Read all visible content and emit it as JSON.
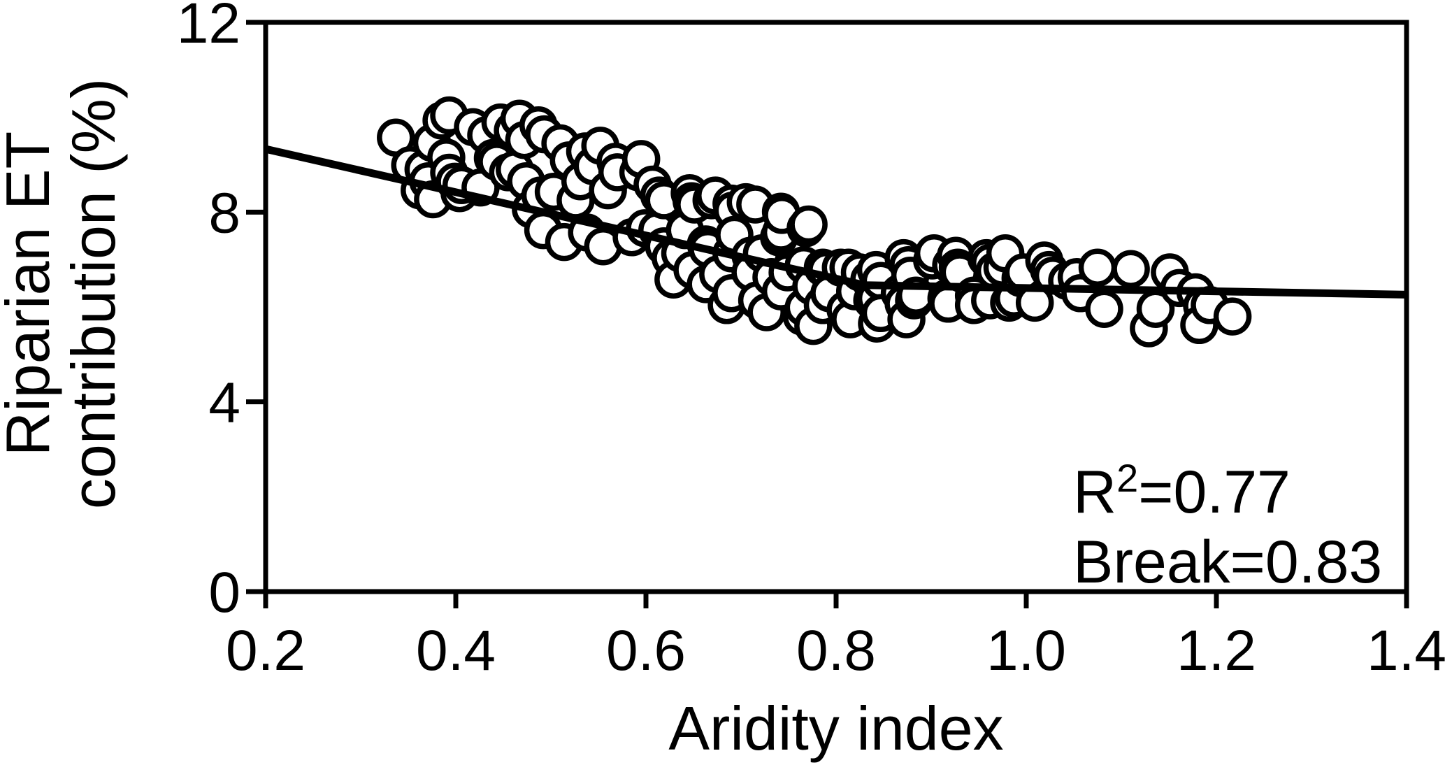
{
  "figure": {
    "background_color": "#ffffff",
    "foreground_color": "#000000",
    "y_axis_label_line1": "Riparian ET",
    "y_axis_label_line2": "contribution (%)",
    "x_axis_label": "Aridity index",
    "annotation": {
      "r2_base": "R",
      "r2_sup": "2",
      "r2_value": "=0.77",
      "break_text": "Break=0.83"
    }
  },
  "chart_data": {
    "type": "scatter",
    "title": "",
    "xlabel": "Aridity index",
    "ylabel": "Riparian ET contribution (%)",
    "xlim": [
      0.2,
      1.4
    ],
    "ylim": [
      0,
      12
    ],
    "x_ticks": [
      0.2,
      0.4,
      0.6,
      0.8,
      1.0,
      1.2,
      1.4
    ],
    "x_tick_labels": [
      "0.2",
      "0.4",
      "0.6",
      "0.8",
      "1.0",
      "1.2",
      "1.4"
    ],
    "y_ticks": [
      0,
      4,
      8,
      12
    ],
    "y_tick_labels": [
      "0",
      "4",
      "8",
      "12"
    ],
    "grid": false,
    "legend": null,
    "frame": "full-box",
    "annotations": [
      "R^2=0.77",
      "Break=0.83"
    ],
    "marker": {
      "shape": "open-circle",
      "radius_px": 23.5,
      "stroke": "#000000",
      "stroke_width": 7.5,
      "fill": "#ffffff"
    },
    "trend_line": {
      "color": "#000000",
      "width": 11,
      "break_x": 0.83,
      "r_squared": 0.77,
      "points": [
        [
          0.2,
          9.33
        ],
        [
          0.83,
          6.46
        ],
        [
          1.4,
          6.26
        ]
      ]
    },
    "points": [
      [
        0.337,
        9.57
      ],
      [
        0.352,
        8.99
      ],
      [
        0.362,
        8.46
      ],
      [
        0.366,
        8.9
      ],
      [
        0.371,
        8.65
      ],
      [
        0.375,
        9.46
      ],
      [
        0.376,
        8.27
      ],
      [
        0.385,
        9.93
      ],
      [
        0.39,
        9.15
      ],
      [
        0.393,
        10.04
      ],
      [
        0.393,
        8.83
      ],
      [
        0.399,
        8.64
      ],
      [
        0.404,
        8.4
      ],
      [
        0.406,
        8.57
      ],
      [
        0.418,
        9.79
      ],
      [
        0.426,
        8.52
      ],
      [
        0.432,
        9.62
      ],
      [
        0.439,
        9.14
      ],
      [
        0.443,
        9.06
      ],
      [
        0.447,
        9.89
      ],
      [
        0.455,
        8.84
      ],
      [
        0.46,
        9.72
      ],
      [
        0.462,
        8.9
      ],
      [
        0.467,
        9.97
      ],
      [
        0.472,
        9.52
      ],
      [
        0.474,
        8.65
      ],
      [
        0.479,
        8.06
      ],
      [
        0.487,
        9.83
      ],
      [
        0.489,
        8.35
      ],
      [
        0.492,
        7.62
      ],
      [
        0.493,
        9.64
      ],
      [
        0.503,
        8.43
      ],
      [
        0.51,
        9.45
      ],
      [
        0.514,
        7.37
      ],
      [
        0.519,
        9.09
      ],
      [
        0.526,
        8.25
      ],
      [
        0.531,
        8.65
      ],
      [
        0.536,
        9.28
      ],
      [
        0.538,
        7.57
      ],
      [
        0.544,
        8.97
      ],
      [
        0.552,
        9.4
      ],
      [
        0.555,
        7.28
      ],
      [
        0.56,
        8.46
      ],
      [
        0.568,
        9.06
      ],
      [
        0.57,
        8.84
      ],
      [
        0.585,
        7.47
      ],
      [
        0.592,
        8.84
      ],
      [
        0.595,
        9.12
      ],
      [
        0.599,
        7.66
      ],
      [
        0.607,
        8.58
      ],
      [
        0.612,
        7.62
      ],
      [
        0.614,
        8.35
      ],
      [
        0.619,
        8.25
      ],
      [
        0.619,
        7.28
      ],
      [
        0.626,
        7.03
      ],
      [
        0.629,
        6.58
      ],
      [
        0.636,
        7.13
      ],
      [
        0.641,
        7.62
      ],
      [
        0.646,
        8.4
      ],
      [
        0.648,
        8.23
      ],
      [
        0.649,
        6.78
      ],
      [
        0.651,
        8.16
      ],
      [
        0.663,
        7.32
      ],
      [
        0.663,
        6.48
      ],
      [
        0.665,
        7.22
      ],
      [
        0.669,
        8.25
      ],
      [
        0.673,
        8.35
      ],
      [
        0.676,
        6.69
      ],
      [
        0.685,
        6.04
      ],
      [
        0.69,
        8.18
      ],
      [
        0.69,
        7.13
      ],
      [
        0.69,
        6.29
      ],
      [
        0.691,
        8.03
      ],
      [
        0.693,
        7.52
      ],
      [
        0.705,
        8.21
      ],
      [
        0.71,
        7.08
      ],
      [
        0.71,
        6.73
      ],
      [
        0.715,
        8.16
      ],
      [
        0.717,
        6.14
      ],
      [
        0.722,
        7.13
      ],
      [
        0.727,
        5.89
      ],
      [
        0.732,
        6.63
      ],
      [
        0.74,
        7.47
      ],
      [
        0.742,
        8.01
      ],
      [
        0.742,
        7.57
      ],
      [
        0.742,
        6.33
      ],
      [
        0.743,
        7.94
      ],
      [
        0.749,
        6.73
      ],
      [
        0.764,
        5.8
      ],
      [
        0.766,
        6.88
      ],
      [
        0.766,
        5.99
      ],
      [
        0.768,
        7.66
      ],
      [
        0.771,
        7.74
      ],
      [
        0.774,
        6.44
      ],
      [
        0.776,
        5.6
      ],
      [
        0.786,
        6.83
      ],
      [
        0.786,
        6.04
      ],
      [
        0.79,
        6.78
      ],
      [
        0.793,
        6.29
      ],
      [
        0.805,
        6.83
      ],
      [
        0.81,
        5.94
      ],
      [
        0.813,
        6.83
      ],
      [
        0.815,
        5.74
      ],
      [
        0.82,
        6.33
      ],
      [
        0.825,
        6.73
      ],
      [
        0.835,
        6.58
      ],
      [
        0.838,
        6.14
      ],
      [
        0.842,
        6.78
      ],
      [
        0.842,
        6.18
      ],
      [
        0.843,
        5.65
      ],
      [
        0.847,
        6.55
      ],
      [
        0.847,
        5.87
      ],
      [
        0.867,
        6.29
      ],
      [
        0.871,
        7.03
      ],
      [
        0.871,
        6.07
      ],
      [
        0.874,
        5.74
      ],
      [
        0.876,
        6.88
      ],
      [
        0.878,
        6.66
      ],
      [
        0.882,
        6.14
      ],
      [
        0.884,
        6.24
      ],
      [
        0.901,
        6.98
      ],
      [
        0.903,
        7.13
      ],
      [
        0.916,
        6.18
      ],
      [
        0.918,
        6.07
      ],
      [
        0.921,
        6.88
      ],
      [
        0.926,
        7.08
      ],
      [
        0.928,
        6.83
      ],
      [
        0.93,
        6.73
      ],
      [
        0.945,
        6.24
      ],
      [
        0.945,
        6.04
      ],
      [
        0.958,
        7.03
      ],
      [
        0.962,
        6.93
      ],
      [
        0.962,
        6.14
      ],
      [
        0.967,
        6.76
      ],
      [
        0.975,
        6.83
      ],
      [
        0.978,
        7.13
      ],
      [
        0.982,
        6.09
      ],
      [
        0.987,
        6.18
      ],
      [
        0.994,
        6.61
      ],
      [
        0.997,
        6.73
      ],
      [
        1.009,
        6.09
      ],
      [
        1.019,
        6.98
      ],
      [
        1.024,
        6.78
      ],
      [
        1.028,
        6.66
      ],
      [
        1.043,
        6.55
      ],
      [
        1.053,
        6.63
      ],
      [
        1.057,
        6.29
      ],
      [
        1.075,
        6.83
      ],
      [
        1.082,
        5.96
      ],
      [
        1.11,
        6.8
      ],
      [
        1.129,
        5.55
      ],
      [
        1.136,
        5.96
      ],
      [
        1.151,
        6.73
      ],
      [
        1.161,
        6.4
      ],
      [
        1.178,
        6.31
      ],
      [
        1.185,
        6.02
      ],
      [
        1.182,
        5.62
      ],
      [
        1.193,
        6.04
      ],
      [
        1.217,
        5.8
      ]
    ]
  }
}
